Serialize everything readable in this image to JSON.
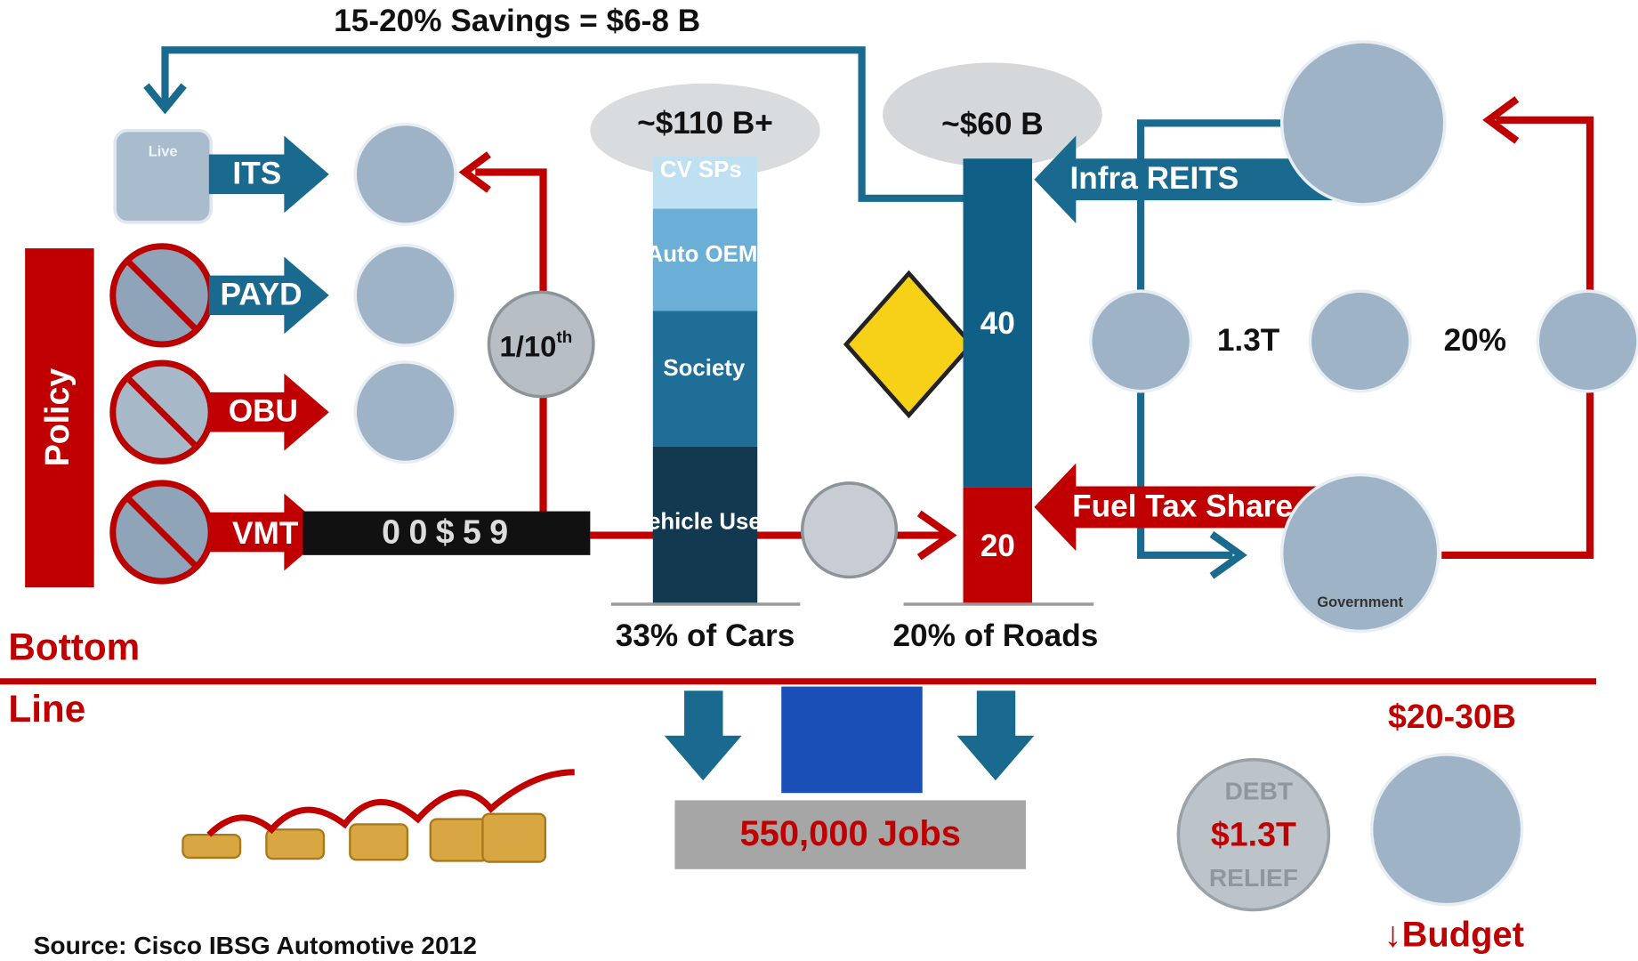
{
  "header": {
    "savings": "15-20% Savings = $6-8 B"
  },
  "policy": {
    "label": "Policy",
    "items": [
      "ITS",
      "PAYD",
      "OBU",
      "VMT"
    ]
  },
  "icons": {
    "live": "Live",
    "government": "Government"
  },
  "odometer": "00$59",
  "coin": {
    "text": "1/10",
    "sup": "th"
  },
  "cars": {
    "total": "~$110 B+",
    "segments": [
      "CV SPs",
      "Auto OEM",
      "Society",
      "Vehicle User"
    ],
    "caption": "33% of Cars"
  },
  "roads": {
    "total": "~$60 B",
    "segments": [
      "40",
      "20"
    ],
    "caption": "20% of Roads"
  },
  "flows": {
    "infra": "Infra REITS",
    "fuel": "Fuel Tax Share"
  },
  "finance": {
    "amount": "1.3T",
    "share": "20%"
  },
  "bottom_line": [
    "Bottom",
    "Line"
  ],
  "jobs": "550,000 Jobs",
  "budget": {
    "amount": "$20-30B",
    "debt_top": "DEBT",
    "debt_bottom": "RELIEF",
    "debt": "$1.3T",
    "label": "↓Budget"
  },
  "source": "Source: Cisco IBSG Automotive 2012"
}
